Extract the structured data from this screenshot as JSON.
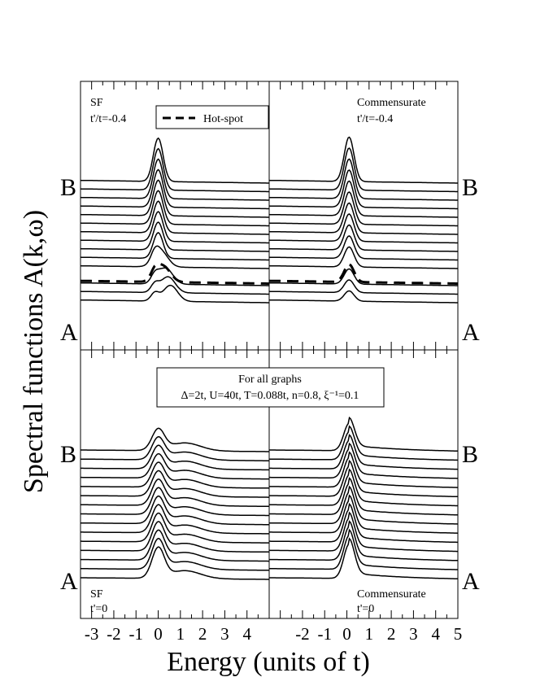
{
  "figure": {
    "ylabel": "Spectral functions A(k,ω)",
    "xlabel": "Energy (units of t)",
    "legend": {
      "hotspot_label": "Hot-spot"
    },
    "params_title": "For all graphs",
    "params_line": "Δ=2t, U=40t, T=0.088t, n=0.8, ξ⁻¹=0.1",
    "end_label_top": "B",
    "end_label_bottom": "A"
  },
  "chart_data": [
    {
      "type": "line",
      "panel": "top-left",
      "text_lines": [
        "SF",
        "t'/t=-0.4"
      ],
      "x_range": [
        -3.5,
        5
      ],
      "x_ticks": [],
      "num_curves": 15,
      "hotspot_curve_index": 3,
      "peak_energy": 0,
      "legend": "Hot-spot (dashed)",
      "grid": false
    },
    {
      "type": "line",
      "panel": "top-right",
      "text_lines": [
        "Commensurate",
        "t'/t=-0.4"
      ],
      "x_range": [
        -3.5,
        5
      ],
      "x_ticks": [],
      "num_curves": 15,
      "hotspot_curve_index": 3,
      "peak_energy": 0.1,
      "grid": false
    },
    {
      "type": "line",
      "panel": "bottom-left",
      "text_lines": [
        "SF",
        "t'=0"
      ],
      "x_range": [
        -3.5,
        5
      ],
      "x_ticks": [
        "-3",
        "-2",
        "-1",
        "0",
        "1",
        "2",
        "3",
        "4"
      ],
      "num_curves": 15,
      "peak_energy": 0,
      "hump_energy": 1.2,
      "grid": false
    },
    {
      "type": "line",
      "panel": "bottom-right",
      "text_lines": [
        "Commensurate",
        "t'=0"
      ],
      "x_range": [
        -3.5,
        5
      ],
      "x_ticks": [
        "-2",
        "-1",
        "0",
        "1",
        "2",
        "3",
        "4",
        "5"
      ],
      "num_curves": 15,
      "peak_energy": 0.1,
      "grid": false
    }
  ]
}
